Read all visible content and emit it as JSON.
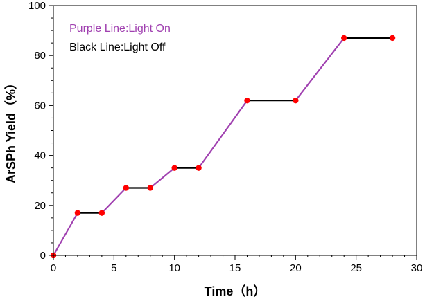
{
  "chart_data": {
    "type": "line",
    "xlabel": "Time（h）",
    "ylabel": "ArSPh Yield（%）",
    "xlim": [
      0,
      30
    ],
    "ylim": [
      0,
      100
    ],
    "x_ticks": [
      0,
      5,
      10,
      15,
      20,
      25,
      30
    ],
    "y_ticks": [
      0,
      20,
      40,
      60,
      80,
      100
    ],
    "grid": false,
    "legend_position": "top-left",
    "legend": [
      {
        "label": "Purple Line:Light On",
        "color": "#a040b0"
      },
      {
        "label": "Black Line:Light Off",
        "color": "#000000"
      }
    ],
    "marker_color": "#ff0000",
    "points": [
      {
        "x": 0,
        "y": 0
      },
      {
        "x": 2,
        "y": 17
      },
      {
        "x": 4,
        "y": 17
      },
      {
        "x": 6,
        "y": 27
      },
      {
        "x": 8,
        "y": 27
      },
      {
        "x": 10,
        "y": 35
      },
      {
        "x": 12,
        "y": 35
      },
      {
        "x": 16,
        "y": 62
      },
      {
        "x": 20,
        "y": 62
      },
      {
        "x": 24,
        "y": 87
      },
      {
        "x": 28,
        "y": 87
      }
    ],
    "series": [
      {
        "name": "Purple Line:Light On",
        "color": "#a040b0",
        "segments": [
          [
            [
              0,
              0
            ],
            [
              2,
              17
            ]
          ],
          [
            [
              4,
              17
            ],
            [
              6,
              27
            ]
          ],
          [
            [
              8,
              27
            ],
            [
              10,
              35
            ]
          ],
          [
            [
              12,
              35
            ],
            [
              16,
              62
            ]
          ],
          [
            [
              20,
              62
            ],
            [
              24,
              87
            ]
          ]
        ]
      },
      {
        "name": "Black Line:Light Off",
        "color": "#000000",
        "segments": [
          [
            [
              2,
              17
            ],
            [
              4,
              17
            ]
          ],
          [
            [
              6,
              27
            ],
            [
              8,
              27
            ]
          ],
          [
            [
              10,
              35
            ],
            [
              12,
              35
            ]
          ],
          [
            [
              16,
              62
            ],
            [
              20,
              62
            ]
          ],
          [
            [
              24,
              87
            ],
            [
              28,
              87
            ]
          ]
        ]
      }
    ]
  }
}
